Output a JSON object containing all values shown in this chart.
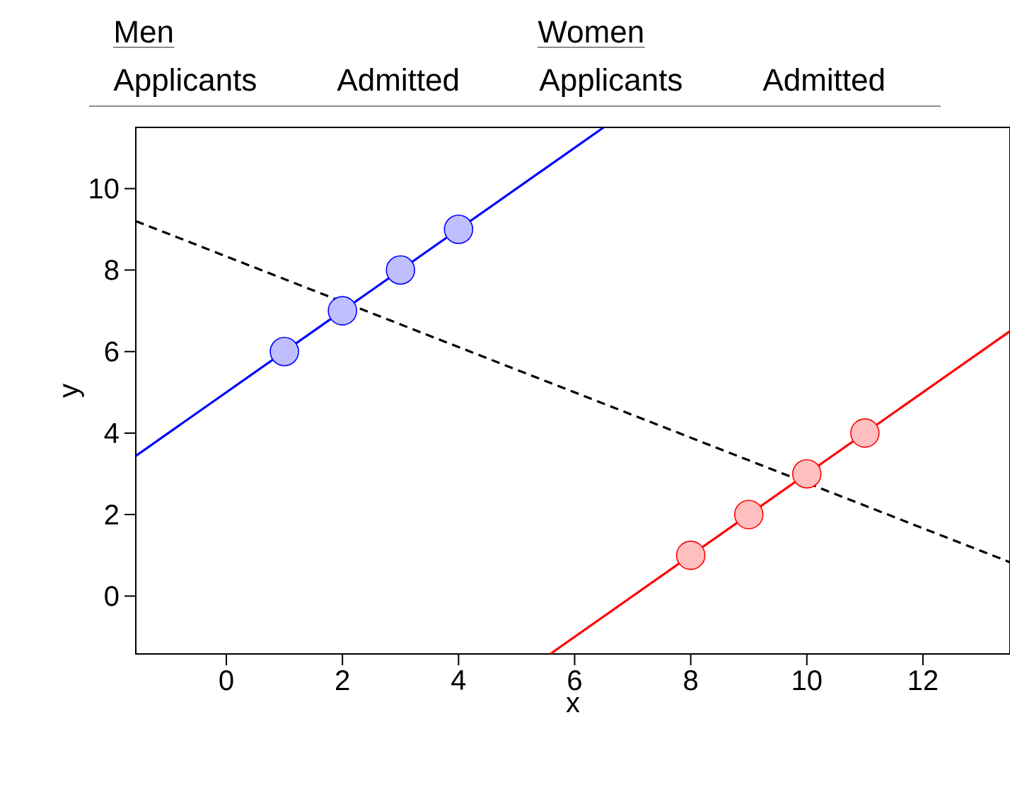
{
  "chart_data": {
    "type": "scatter",
    "xlabel": "x",
    "ylabel": "y",
    "annotations": [
      "Men",
      "Women",
      "Applicants",
      "Admitted",
      "Applicants",
      "Admitted"
    ],
    "xlim": [
      -1.56,
      13.5
    ],
    "ylim": [
      -1.42,
      11.5
    ],
    "xticks": [
      0,
      2,
      4,
      6,
      8,
      10,
      12
    ],
    "yticks": [
      0,
      2,
      4,
      6,
      8,
      10
    ],
    "series": [
      {
        "type": "line",
        "x": [
          -1.56,
          6.5
        ],
        "values": [
          3.44,
          11.5
        ],
        "color": "#0000ff",
        "line_style": "solid"
      },
      {
        "type": "line",
        "x": [
          5.58,
          13.5
        ],
        "values": [
          -1.42,
          6.5
        ],
        "color": "#ff0000",
        "line_style": "solid"
      },
      {
        "type": "line",
        "x": [
          -1.56,
          13.5
        ],
        "values": [
          9.2,
          0.83
        ],
        "color": "#000000",
        "line_style": "dashed"
      },
      {
        "x": [
          1,
          2,
          3,
          4
        ],
        "values": [
          6,
          7,
          8,
          9
        ],
        "color": "#0000ff",
        "marker": "circle"
      },
      {
        "x": [
          8,
          9,
          10,
          11
        ],
        "values": [
          1,
          2,
          3,
          4
        ],
        "color": "#ff0000",
        "marker": "circle"
      }
    ]
  }
}
